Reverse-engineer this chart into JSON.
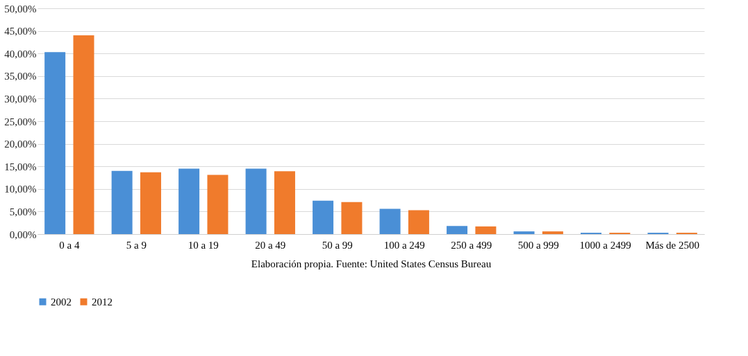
{
  "chart_data": {
    "type": "bar",
    "categories": [
      "0 a 4",
      "5 a 9",
      "10 a 19",
      "20 a 49",
      "50 a 99",
      "100 a 249",
      "250 a 499",
      "500 a 999",
      "1000 a 2499",
      "Más de 2500"
    ],
    "series": [
      {
        "name": "2002",
        "color": "#4a8fd6",
        "values": [
          40.3,
          14.0,
          14.5,
          14.5,
          7.4,
          5.6,
          1.8,
          0.6,
          0.3,
          0.3
        ]
      },
      {
        "name": "2012",
        "color": "#f07b2c",
        "values": [
          44.0,
          13.7,
          13.1,
          13.9,
          7.1,
          5.3,
          1.7,
          0.6,
          0.3,
          0.3
        ]
      }
    ],
    "ylim": [
      0,
      50
    ],
    "yticks": [
      {
        "value": 0,
        "label": "0,00%"
      },
      {
        "value": 5,
        "label": "5,00%"
      },
      {
        "value": 10,
        "label": "10,00%"
      },
      {
        "value": 15,
        "label": "15,00%"
      },
      {
        "value": 20,
        "label": "20,00%"
      },
      {
        "value": 25,
        "label": "25,00%"
      },
      {
        "value": 30,
        "label": "30,00%"
      },
      {
        "value": 35,
        "label": "35,00%"
      },
      {
        "value": 40,
        "label": "40,00%"
      },
      {
        "value": 45,
        "label": "45,00%"
      },
      {
        "value": 50,
        "label": "50,00%"
      }
    ],
    "annotations": [
      "Elaboración  propia. Fuente: United States Census Bureau"
    ],
    "grid": "y",
    "legend": "bottom"
  }
}
